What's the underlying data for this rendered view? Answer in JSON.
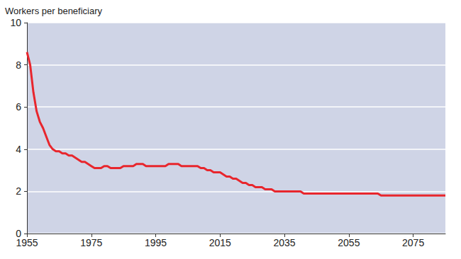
{
  "chart_data": {
    "type": "line",
    "ylabel": "Workers per beneficiary",
    "x": [
      1955,
      1956,
      1957,
      1958,
      1959,
      1960,
      1961,
      1962,
      1963,
      1964,
      1965,
      1966,
      1967,
      1968,
      1969,
      1970,
      1971,
      1972,
      1973,
      1974,
      1975,
      1976,
      1977,
      1978,
      1979,
      1980,
      1981,
      1982,
      1983,
      1984,
      1985,
      1986,
      1987,
      1988,
      1989,
      1990,
      1991,
      1992,
      1993,
      1994,
      1995,
      1996,
      1997,
      1998,
      1999,
      2000,
      2001,
      2002,
      2003,
      2004,
      2005,
      2006,
      2007,
      2008,
      2009,
      2010,
      2011,
      2012,
      2013,
      2014,
      2015,
      2016,
      2017,
      2018,
      2019,
      2020,
      2021,
      2022,
      2023,
      2024,
      2025,
      2026,
      2027,
      2028,
      2029,
      2030,
      2031,
      2032,
      2033,
      2034,
      2035,
      2036,
      2037,
      2038,
      2039,
      2040,
      2041,
      2045,
      2050,
      2055,
      2060,
      2064,
      2065,
      2070,
      2075,
      2080,
      2085
    ],
    "values": [
      8.6,
      8.0,
      6.7,
      5.8,
      5.3,
      5.0,
      4.6,
      4.2,
      4.0,
      3.9,
      3.9,
      3.8,
      3.8,
      3.7,
      3.7,
      3.6,
      3.5,
      3.4,
      3.4,
      3.3,
      3.2,
      3.1,
      3.1,
      3.1,
      3.2,
      3.2,
      3.1,
      3.1,
      3.1,
      3.1,
      3.2,
      3.2,
      3.2,
      3.2,
      3.3,
      3.3,
      3.3,
      3.2,
      3.2,
      3.2,
      3.2,
      3.2,
      3.2,
      3.2,
      3.3,
      3.3,
      3.3,
      3.3,
      3.2,
      3.2,
      3.2,
      3.2,
      3.2,
      3.2,
      3.1,
      3.1,
      3.0,
      3.0,
      2.9,
      2.9,
      2.9,
      2.8,
      2.7,
      2.7,
      2.6,
      2.6,
      2.5,
      2.4,
      2.4,
      2.3,
      2.3,
      2.2,
      2.2,
      2.2,
      2.1,
      2.1,
      2.1,
      2.0,
      2.0,
      2.0,
      2.0,
      2.0,
      2.0,
      2.0,
      2.0,
      2.0,
      1.9,
      1.9,
      1.9,
      1.9,
      1.9,
      1.9,
      1.8,
      1.8,
      1.8,
      1.8,
      1.8
    ],
    "color": "#e8262d",
    "xlim": [
      1955,
      2085
    ],
    "xticks": [
      1955,
      1975,
      1995,
      2015,
      2035,
      2055,
      2075
    ],
    "ylim": [
      0,
      10
    ],
    "yticks": [
      0,
      2,
      4,
      6,
      8,
      10
    ],
    "grid": true
  }
}
